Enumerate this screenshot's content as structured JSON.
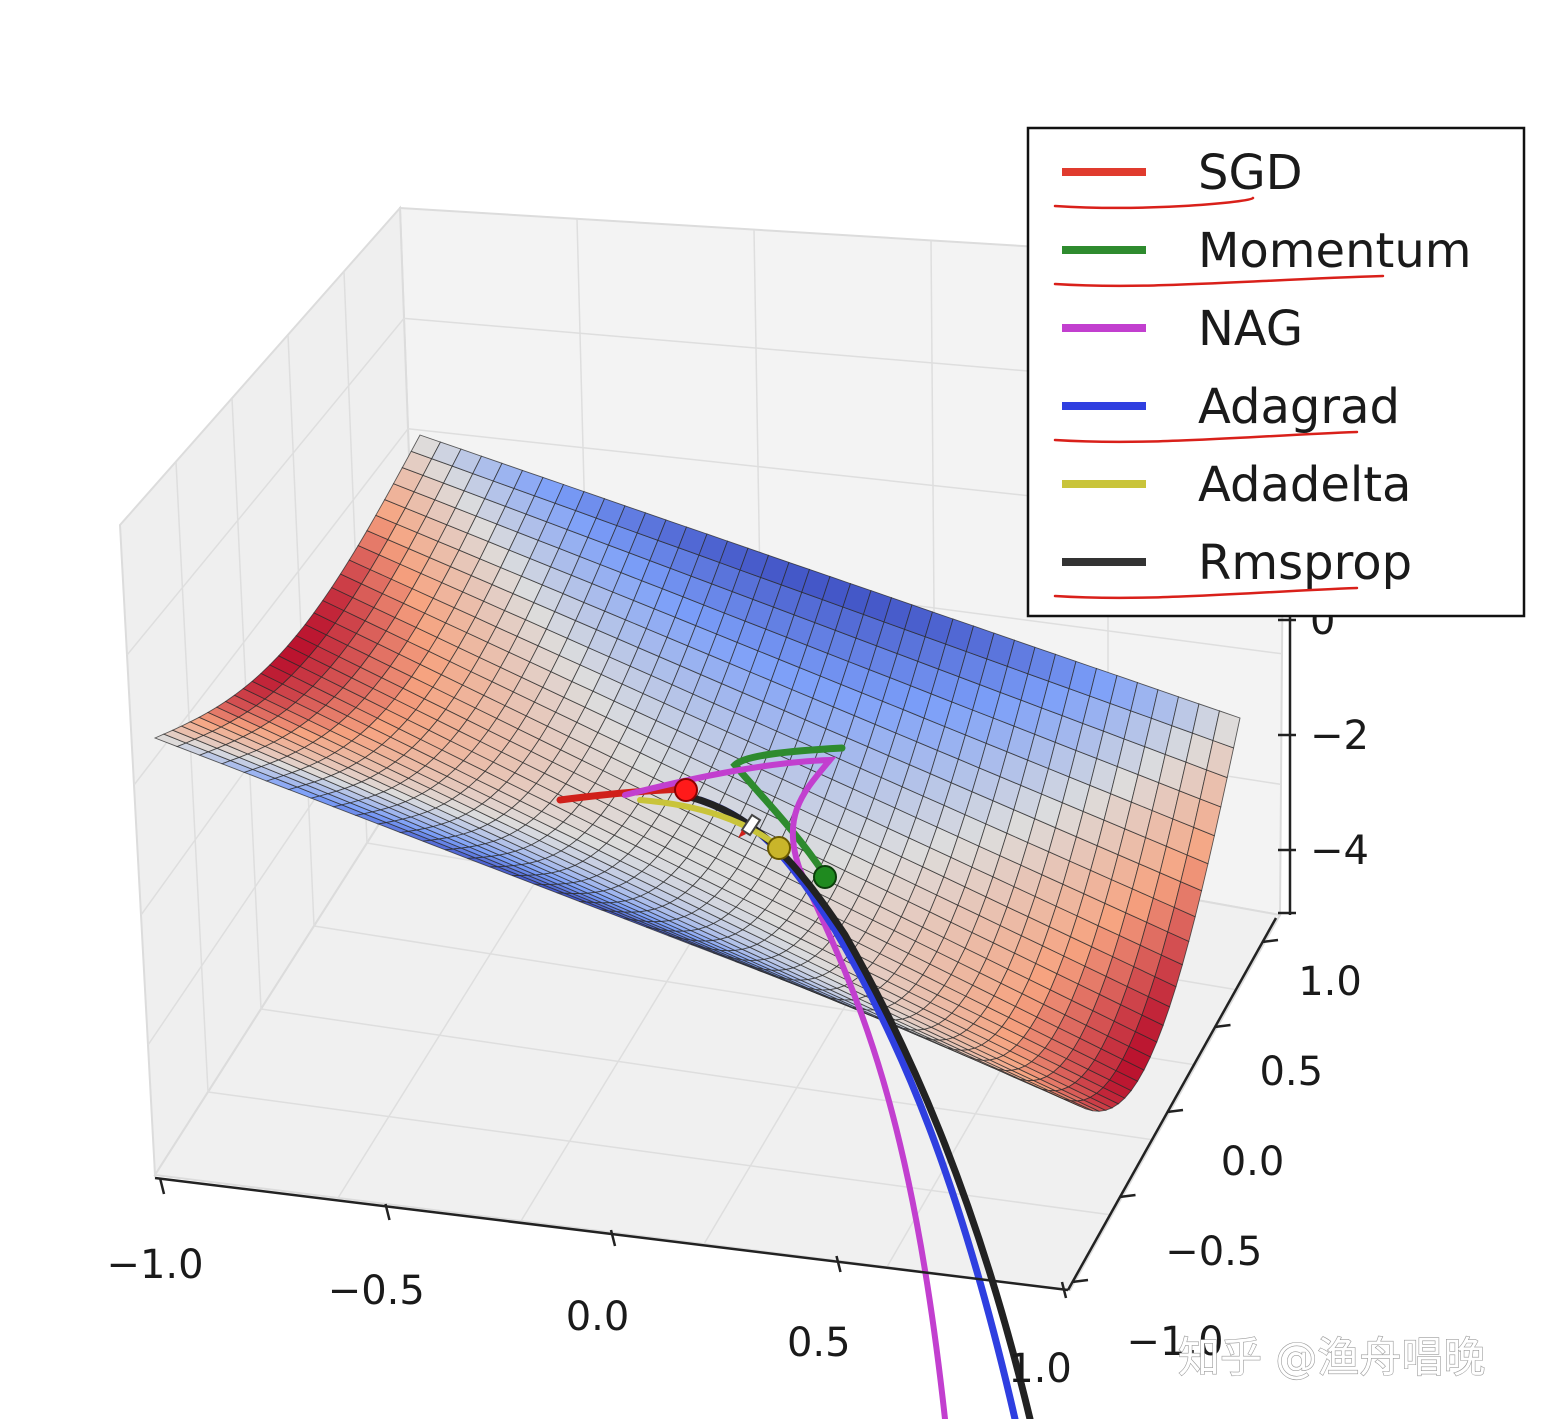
{
  "chart_data": {
    "type": "surface3d",
    "surface": "saddle",
    "colormap": "coolwarm",
    "x_ticks": [
      "−1.0",
      "−0.5",
      "0.0",
      "0.5",
      "1.0"
    ],
    "y_ticks": [
      "1.0",
      "0.5",
      "0.0",
      "−0.5",
      "−1.0"
    ],
    "z_ticks": [
      "0",
      "−2",
      "−4"
    ],
    "xlim": [
      -1.0,
      1.0
    ],
    "ylim": [
      -1.0,
      1.0
    ],
    "zlim": [
      -5,
      1
    ],
    "legend_position": "top-right",
    "series": [
      {
        "name": "SGD",
        "color": "#e03b2e",
        "marker_color": "#ff1a1a",
        "underlined": true
      },
      {
        "name": "Momentum",
        "color": "#2e8b2e",
        "marker_color": "#1f8a1f",
        "underlined": true
      },
      {
        "name": "NAG",
        "color": "#c23fcf",
        "underlined": false
      },
      {
        "name": "Adagrad",
        "color": "#2f3fe0",
        "underlined": true
      },
      {
        "name": "Adadelta",
        "color": "#c9c43a",
        "marker_color": "#c9b52a",
        "underlined": false
      },
      {
        "name": "Rmsprop",
        "color": "#333333",
        "underlined": true
      }
    ],
    "annotation_color": "#d9201a"
  },
  "watermark": "知乎 @渔舟唱晚"
}
